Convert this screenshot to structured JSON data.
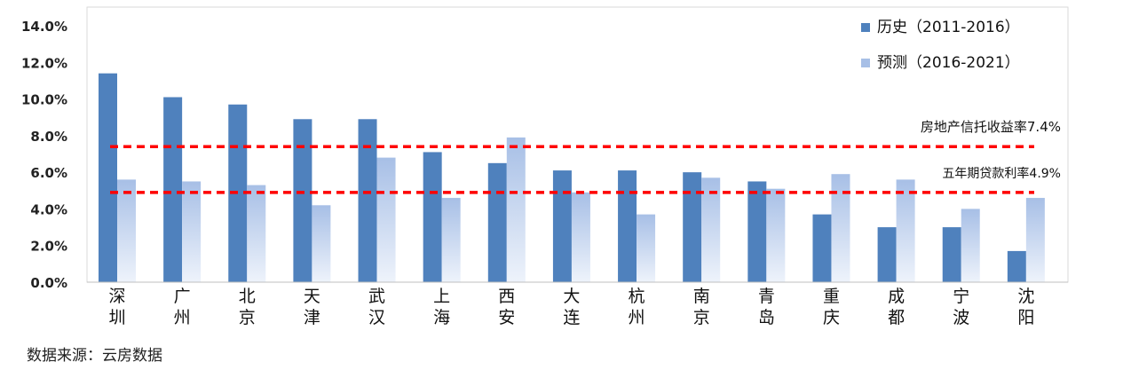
{
  "chart_data": {
    "type": "bar",
    "categories": [
      [
        "深",
        "圳"
      ],
      [
        "广",
        "州"
      ],
      [
        "北",
        "京"
      ],
      [
        "天",
        "津"
      ],
      [
        "武",
        "汉"
      ],
      [
        "上",
        "海"
      ],
      [
        "西",
        "安"
      ],
      [
        "大",
        "连"
      ],
      [
        "杭",
        "州"
      ],
      [
        "南",
        "京"
      ],
      [
        "青",
        "岛"
      ],
      [
        "重",
        "庆"
      ],
      [
        "成",
        "都"
      ],
      [
        "宁",
        "波"
      ],
      [
        "沈",
        "阳"
      ]
    ],
    "series": [
      {
        "name": "历史（2011-2016）",
        "color": "#4f81bd",
        "values": [
          11.4,
          10.1,
          9.7,
          8.9,
          8.9,
          7.1,
          6.5,
          6.1,
          6.1,
          6.0,
          5.5,
          3.7,
          3.0,
          3.0,
          1.7
        ]
      },
      {
        "name": "预测（2016-2021）",
        "color": "#a7bfe6",
        "values": [
          5.6,
          5.5,
          5.3,
          4.2,
          6.8,
          4.6,
          7.9,
          4.9,
          3.7,
          5.7,
          5.1,
          5.9,
          5.6,
          4.0,
          4.6
        ]
      }
    ],
    "reference_lines": [
      {
        "label": "房地产信托收益率7.4%",
        "value": 7.4,
        "color": "#ff0000"
      },
      {
        "label": "五年期贷款利率4.9%",
        "value": 4.9,
        "color": "#ff0000"
      }
    ],
    "yticks": [
      "0.0%",
      "2.0%",
      "4.0%",
      "6.0%",
      "8.0%",
      "10.0%",
      "12.0%",
      "14.0%"
    ],
    "ylim": [
      0,
      14
    ],
    "legend_position": "top-right",
    "grid": false
  },
  "source_note": "数据来源：云房数据"
}
